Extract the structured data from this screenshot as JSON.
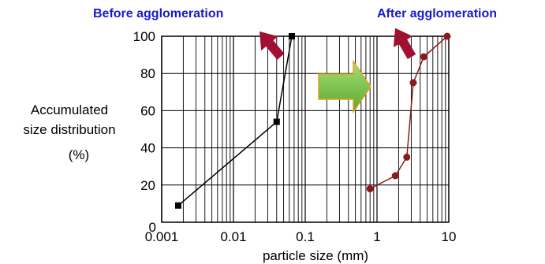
{
  "chart_data": {
    "type": "line",
    "x_scale": "log",
    "xlim": [
      0.001,
      10
    ],
    "ylim": [
      0,
      100
    ],
    "x_ticks": [
      "0.001",
      "0.01",
      "0.1",
      "1",
      "10"
    ],
    "y_ticks": [
      "0",
      "20",
      "40",
      "60",
      "80",
      "100"
    ],
    "xlabel": "particle size (mm)",
    "ylabel": [
      "Accumulated",
      "size distribution",
      "(%)"
    ],
    "grid": true,
    "series": [
      {
        "name": "Before agglomeration",
        "color": "#000000",
        "marker": "square",
        "x": [
          0.0017,
          0.04,
          0.065
        ],
        "y": [
          9,
          54,
          100
        ]
      },
      {
        "name": "After agglomeration",
        "color": "#8b1a1a",
        "marker": "circle",
        "x": [
          0.8,
          1.8,
          2.6,
          3.2,
          4.5,
          9.5
        ],
        "y": [
          18,
          25,
          35,
          75,
          89,
          100
        ]
      }
    ],
    "annotations": {
      "label_color": "#1a1acc",
      "arrow_color": "#a01030",
      "center_arrow_fill": "#7ac943",
      "center_arrow_stroke": "#e0a020"
    }
  }
}
